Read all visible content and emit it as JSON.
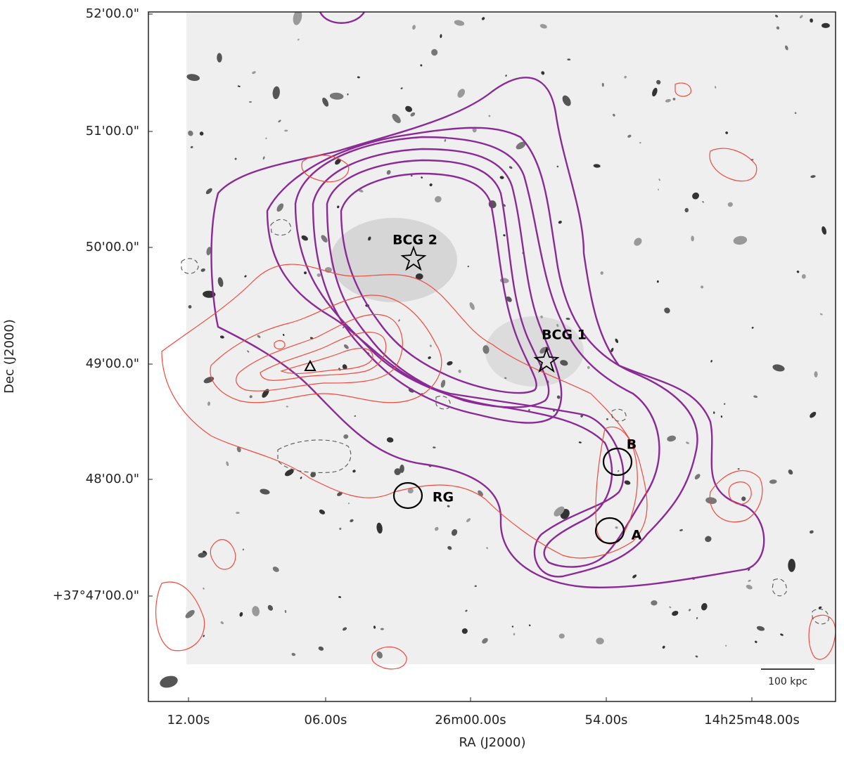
{
  "axes": {
    "x_label": "RA (J2000)",
    "y_label": "Dec (J2000)",
    "x_ticks": [
      "12.00s",
      "06.00s",
      "26m00.00s",
      "54.00s",
      "14h25m48.00s"
    ],
    "y_ticks": [
      "52'00.0\"",
      "51'00.0\"",
      "50'00.0\"",
      "49'00.0\"",
      "48'00.0\"",
      "+37°47'00.0\""
    ]
  },
  "annotations": {
    "bcg2": "BCG 2",
    "bcg1": "BCG 1",
    "b": "B",
    "a": "A",
    "rg": "RG",
    "scale_bar": "100 kpc"
  }
}
